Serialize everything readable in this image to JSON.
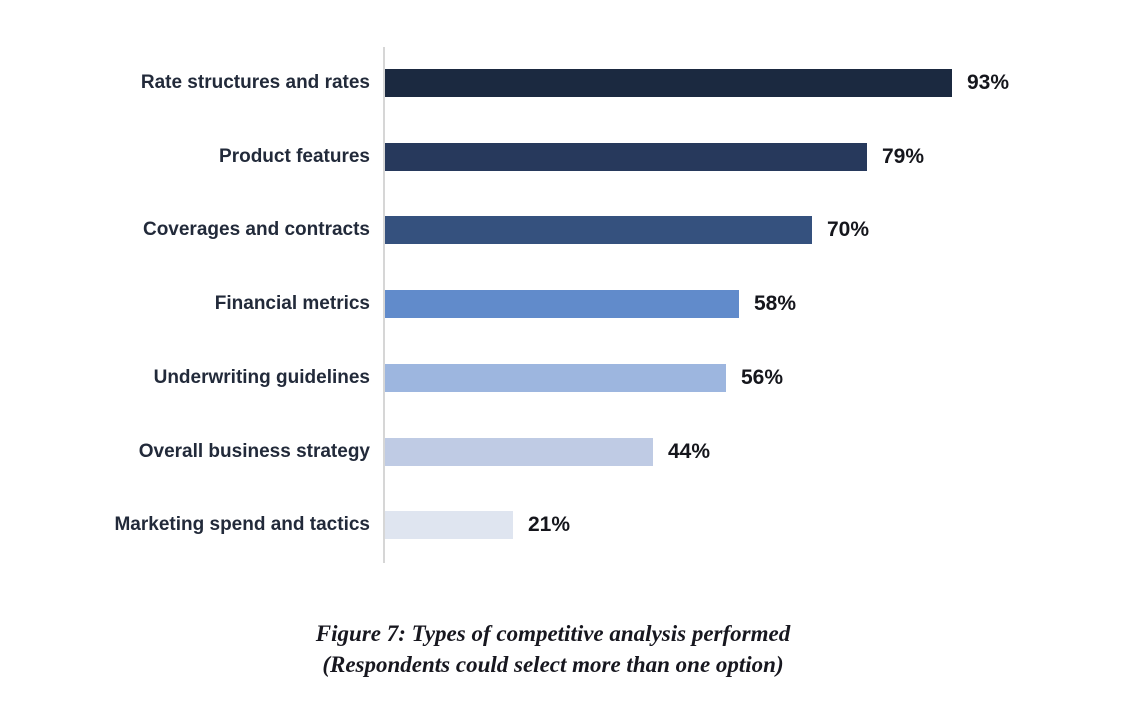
{
  "chart_data": {
    "type": "bar",
    "orientation": "horizontal",
    "categories": [
      "Rate structures and rates",
      "Product features",
      "Coverages and contracts",
      "Financial metrics",
      "Underwriting guidelines",
      "Overall business strategy",
      "Marketing spend and tactics"
    ],
    "values": [
      93,
      79,
      70,
      58,
      56,
      44,
      21
    ],
    "value_labels": [
      "93%",
      "79%",
      "70%",
      "58%",
      "56%",
      "44%",
      "21%"
    ],
    "bar_colors": [
      "#1b2940",
      "#27395c",
      "#35517e",
      "#618bcb",
      "#9db6df",
      "#bfcbe4",
      "#dfe5f0"
    ],
    "title": "Figure 7: Types of competitive analysis performed",
    "subtitle": "(Respondents could select more than one option)",
    "xlabel": "",
    "ylabel": "",
    "xlim": [
      0,
      100
    ],
    "grid": false,
    "legend": false,
    "axis_line_color": "#d6d6d6"
  }
}
